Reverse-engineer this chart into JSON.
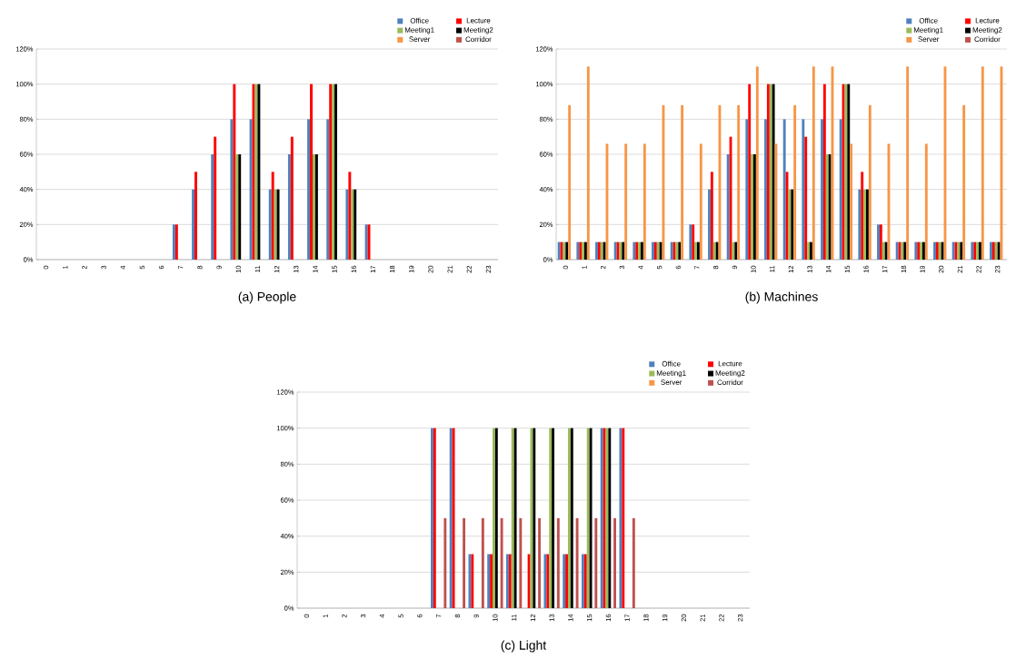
{
  "chart_data": [
    {
      "type": "bar",
      "title": "(a) People",
      "categories": [
        "0",
        "1",
        "2",
        "3",
        "4",
        "5",
        "6",
        "7",
        "8",
        "9",
        "10",
        "11",
        "12",
        "13",
        "14",
        "15",
        "16",
        "17",
        "18",
        "19",
        "20",
        "21",
        "22",
        "23"
      ],
      "series": [
        {
          "name": "Office",
          "color": "#4f81bd",
          "values": [
            0,
            0,
            0,
            0,
            0,
            0,
            0,
            20,
            40,
            60,
            80,
            80,
            40,
            60,
            80,
            80,
            40,
            20,
            0,
            0,
            0,
            0,
            0,
            0
          ]
        },
        {
          "name": "Lecture",
          "color": "#ff0000",
          "values": [
            0,
            0,
            0,
            0,
            0,
            0,
            0,
            20,
            50,
            70,
            100,
            100,
            50,
            70,
            100,
            100,
            50,
            20,
            0,
            0,
            0,
            0,
            0,
            0
          ]
        },
        {
          "name": "Meeting1",
          "color": "#9bbb59",
          "values": [
            0,
            0,
            0,
            0,
            0,
            0,
            0,
            0,
            0,
            0,
            60,
            100,
            40,
            0,
            60,
            100,
            40,
            0,
            0,
            0,
            0,
            0,
            0,
            0
          ]
        },
        {
          "name": "Meeting2",
          "color": "#000000",
          "values": [
            0,
            0,
            0,
            0,
            0,
            0,
            0,
            0,
            0,
            0,
            60,
            100,
            40,
            0,
            60,
            100,
            40,
            0,
            0,
            0,
            0,
            0,
            0,
            0
          ]
        },
        {
          "name": "Server",
          "color": "#f79646",
          "values": [
            0,
            0,
            0,
            0,
            0,
            0,
            0,
            0,
            0,
            0,
            0,
            0,
            0,
            0,
            0,
            0,
            0,
            0,
            0,
            0,
            0,
            0,
            0,
            0
          ]
        },
        {
          "name": "Corridor",
          "color": "#c0504d",
          "values": [
            0,
            0,
            0,
            0,
            0,
            0,
            0,
            0,
            0,
            0,
            0,
            0,
            0,
            0,
            0,
            0,
            0,
            0,
            0,
            0,
            0,
            0,
            0,
            0
          ]
        }
      ],
      "ylim": [
        0,
        120
      ],
      "yticks": [
        {
          "value": 0,
          "label": "0%"
        },
        {
          "value": 20,
          "label": "20%"
        },
        {
          "value": 40,
          "label": "40%"
        },
        {
          "value": 60,
          "label": "60%"
        },
        {
          "value": 80,
          "label": "80%"
        },
        {
          "value": 100,
          "label": "100%"
        },
        {
          "value": 120,
          "label": "120%"
        }
      ],
      "grid": "y",
      "legend": "top right"
    },
    {
      "type": "bar",
      "title": "(b) Machines",
      "categories": [
        "0",
        "1",
        "2",
        "3",
        "4",
        "5",
        "6",
        "7",
        "8",
        "9",
        "10",
        "11",
        "12",
        "13",
        "14",
        "15",
        "16",
        "17",
        "18",
        "19",
        "20",
        "21",
        "22",
        "23"
      ],
      "series": [
        {
          "name": "Office",
          "color": "#4f81bd",
          "values": [
            10,
            10,
            10,
            10,
            10,
            10,
            10,
            20,
            40,
            60,
            80,
            80,
            80,
            80,
            80,
            80,
            40,
            20,
            10,
            10,
            10,
            10,
            10,
            10
          ]
        },
        {
          "name": "Lecture",
          "color": "#ff0000",
          "values": [
            10,
            10,
            10,
            10,
            10,
            10,
            10,
            20,
            50,
            70,
            100,
            100,
            50,
            70,
            100,
            100,
            50,
            20,
            10,
            10,
            10,
            10,
            10,
            10
          ]
        },
        {
          "name": "Meeting1",
          "color": "#9bbb59",
          "values": [
            10,
            10,
            10,
            10,
            10,
            10,
            10,
            10,
            10,
            10,
            60,
            100,
            40,
            10,
            60,
            100,
            40,
            10,
            10,
            10,
            10,
            10,
            10,
            10
          ]
        },
        {
          "name": "Meeting2",
          "color": "#000000",
          "values": [
            10,
            10,
            10,
            10,
            10,
            10,
            10,
            10,
            10,
            10,
            60,
            100,
            40,
            10,
            60,
            100,
            40,
            10,
            10,
            10,
            10,
            10,
            10,
            10
          ]
        },
        {
          "name": "Server",
          "color": "#f79646",
          "values": [
            88,
            110,
            66,
            66,
            66,
            88,
            88,
            66,
            88,
            88,
            110,
            66,
            88,
            110,
            110,
            66,
            88,
            66,
            110,
            66,
            110,
            88,
            110,
            110
          ]
        },
        {
          "name": "Corridor",
          "color": "#c0504d",
          "values": [
            0,
            0,
            0,
            0,
            0,
            0,
            0,
            0,
            0,
            0,
            0,
            0,
            0,
            0,
            0,
            0,
            0,
            0,
            0,
            0,
            0,
            0,
            0,
            0
          ]
        }
      ],
      "ylim": [
        0,
        120
      ],
      "yticks": [
        {
          "value": 0,
          "label": "0%"
        },
        {
          "value": 20,
          "label": "20%"
        },
        {
          "value": 40,
          "label": "40%"
        },
        {
          "value": 60,
          "label": "60%"
        },
        {
          "value": 80,
          "label": "80%"
        },
        {
          "value": 100,
          "label": "100%"
        },
        {
          "value": 120,
          "label": "120%"
        }
      ],
      "grid": "y",
      "legend": "top right"
    },
    {
      "type": "bar",
      "title": "(c) Light",
      "categories": [
        "0",
        "1",
        "2",
        "3",
        "4",
        "5",
        "6",
        "7",
        "8",
        "9",
        "10",
        "11",
        "12",
        "13",
        "14",
        "15",
        "16",
        "17",
        "18",
        "19",
        "20",
        "21",
        "22",
        "23"
      ],
      "series": [
        {
          "name": "Office",
          "color": "#4f81bd",
          "values": [
            0,
            0,
            0,
            0,
            0,
            0,
            0,
            100,
            100,
            30,
            30,
            30,
            0,
            30,
            30,
            30,
            100,
            100,
            0,
            0,
            0,
            0,
            0,
            0
          ]
        },
        {
          "name": "Lecture",
          "color": "#ff0000",
          "values": [
            0,
            0,
            0,
            0,
            0,
            0,
            0,
            100,
            100,
            30,
            30,
            30,
            30,
            30,
            30,
            30,
            100,
            100,
            0,
            0,
            0,
            0,
            0,
            0
          ]
        },
        {
          "name": "Meeting1",
          "color": "#9bbb59",
          "values": [
            0,
            0,
            0,
            0,
            0,
            0,
            0,
            0,
            0,
            0,
            100,
            100,
            100,
            100,
            100,
            100,
            100,
            0,
            0,
            0,
            0,
            0,
            0,
            0
          ]
        },
        {
          "name": "Meeting2",
          "color": "#000000",
          "values": [
            0,
            0,
            0,
            0,
            0,
            0,
            0,
            0,
            0,
            0,
            100,
            100,
            100,
            100,
            100,
            100,
            100,
            0,
            0,
            0,
            0,
            0,
            0,
            0
          ]
        },
        {
          "name": "Server",
          "color": "#f79646",
          "values": [
            0,
            0,
            0,
            0,
            0,
            0,
            0,
            0,
            0,
            0,
            0,
            0,
            0,
            0,
            0,
            0,
            0,
            0,
            0,
            0,
            0,
            0,
            0,
            0
          ]
        },
        {
          "name": "Corridor",
          "color": "#c0504d",
          "values": [
            0,
            0,
            0,
            0,
            0,
            0,
            0,
            50,
            50,
            50,
            50,
            50,
            50,
            50,
            50,
            50,
            50,
            50,
            0,
            0,
            0,
            0,
            0,
            0
          ]
        }
      ],
      "ylim": [
        0,
        120
      ],
      "yticks": [
        {
          "value": 0,
          "label": "0%"
        },
        {
          "value": 20,
          "label": "20%"
        },
        {
          "value": 40,
          "label": "40%"
        },
        {
          "value": 60,
          "label": "60%"
        },
        {
          "value": 80,
          "label": "80%"
        },
        {
          "value": 100,
          "label": "100%"
        },
        {
          "value": 120,
          "label": "120%"
        }
      ],
      "grid": "y",
      "legend": "top right"
    }
  ]
}
